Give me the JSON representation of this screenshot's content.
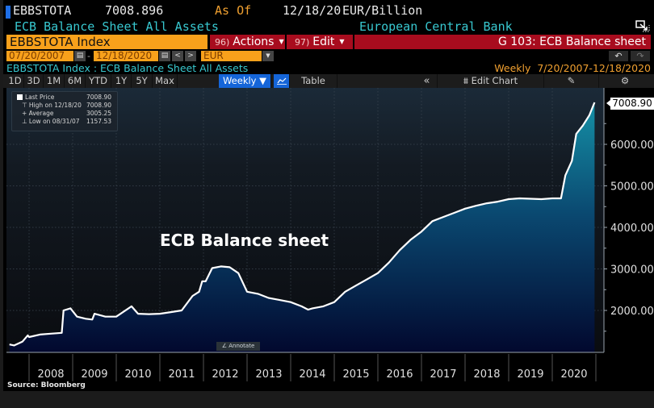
{
  "header": {
    "ticker": "EBBSTOTA",
    "last_value": "7008.896",
    "as_of_label": "As Of",
    "as_of_date": "12/18/20",
    "unit": "EUR/Billion",
    "description": "ECB Balance Sheet All Assets",
    "source_org": "European Central Bank"
  },
  "command_bar": {
    "security": "EBBSTOTA Index",
    "actions": {
      "num": "96)",
      "label": "Actions"
    },
    "edit": {
      "num": "97)",
      "label": "Edit"
    },
    "graph_title": "G 103: ECB Balance sheet"
  },
  "date_range": {
    "start": "07/20/2007",
    "end": "12/18/2020",
    "currency": "EUR",
    "prev": "<",
    "next": ">"
  },
  "subtitle": "EBBSTOTA Index : ECB Balance Sheet All Assets",
  "period_info": {
    "frequency": "Weekly",
    "range": "7/20/2007-12/18/2020"
  },
  "toolbar": {
    "periods": [
      "1D",
      "3D",
      "1M",
      "6M",
      "YTD",
      "1Y",
      "5Y",
      "Max"
    ],
    "frequency": "Weekly ▼",
    "table": "Table",
    "collapse": "«",
    "edit_chart": "Edit Chart"
  },
  "legend": {
    "last_price_label": "Last Price",
    "last_price": "7008.90",
    "high_label": "High on 12/18/20",
    "high": "7008.90",
    "average_label": "Average",
    "average": "3005.25",
    "low_label": "Low on 08/31/07",
    "low": "1157.53"
  },
  "annotate": "Annotate",
  "price_tag": "7008.90",
  "source": "Source: Bloomberg",
  "colors": {
    "orange": "#f8a11b",
    "red": "#a80c1e",
    "cyan_text": "#38c8d0",
    "active_blue": "#1565d8",
    "line": "#ffffff"
  },
  "chart_data": {
    "type": "area",
    "title": "ECB Balance sheet",
    "xlabel": "",
    "ylabel": "EUR/Billion",
    "frequency": "Weekly",
    "ylim": [
      1000,
      7300
    ],
    "yticks": [
      2000,
      3000,
      4000,
      5000,
      6000
    ],
    "ytick_labels": [
      "2000.00",
      "3000.00",
      "4000.00",
      "5000.00",
      "6000.00"
    ],
    "xtick_labels": [
      "2008",
      "2009",
      "2010",
      "2011",
      "2012",
      "2013",
      "2014",
      "2015",
      "2016",
      "2017",
      "2018",
      "2019",
      "2020"
    ],
    "grid": true,
    "series": [
      {
        "name": "EBBSTOTA Index",
        "x": [
          2007.55,
          2007.66,
          2007.85,
          2007.97,
          2008.0,
          2008.25,
          2008.5,
          2008.75,
          2008.79,
          2008.95,
          2009.1,
          2009.3,
          2009.45,
          2009.5,
          2009.75,
          2010.0,
          2010.35,
          2010.5,
          2010.75,
          2011.0,
          2011.25,
          2011.5,
          2011.75,
          2011.9,
          2011.97,
          2012.05,
          2012.2,
          2012.4,
          2012.6,
          2012.8,
          2013.0,
          2013.25,
          2013.5,
          2013.75,
          2014.0,
          2014.25,
          2014.4,
          2014.5,
          2014.75,
          2015.0,
          2015.25,
          2015.5,
          2015.75,
          2016.0,
          2016.25,
          2016.5,
          2016.75,
          2017.0,
          2017.25,
          2017.5,
          2017.75,
          2018.0,
          2018.25,
          2018.5,
          2018.75,
          2019.0,
          2019.25,
          2019.5,
          2019.75,
          2020.0,
          2020.2,
          2020.3,
          2020.45,
          2020.55,
          2020.7,
          2020.85,
          2020.97
        ],
        "values": [
          1180,
          1157.53,
          1250,
          1400,
          1360,
          1420,
          1440,
          1460,
          2000,
          2050,
          1850,
          1800,
          1780,
          1920,
          1850,
          1850,
          2100,
          1920,
          1910,
          1920,
          1960,
          2000,
          2350,
          2450,
          2700,
          2700,
          3020,
          3060,
          3040,
          2900,
          2450,
          2400,
          2300,
          2250,
          2200,
          2100,
          2020,
          2050,
          2100,
          2200,
          2450,
          2600,
          2750,
          2900,
          3150,
          3450,
          3700,
          3900,
          4150,
          4250,
          4350,
          4450,
          4520,
          4580,
          4620,
          4680,
          4700,
          4690,
          4680,
          4700,
          4700,
          5250,
          5600,
          6250,
          6450,
          6700,
          7008.896
        ]
      }
    ],
    "last_value_label": "7008.90",
    "summary": {
      "last": 7008.9,
      "high": 7008.9,
      "high_date": "12/18/20",
      "average": 3005.25,
      "low": 1157.53,
      "low_date": "08/31/07"
    }
  }
}
